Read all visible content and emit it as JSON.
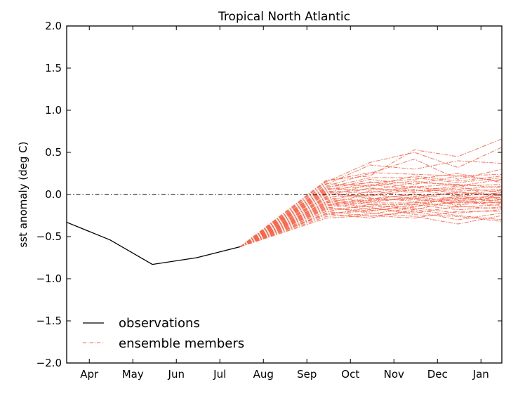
{
  "chart_data": {
    "type": "line",
    "title": "Tropical North Atlantic",
    "xlabel": "",
    "ylabel": "sst anomaly (deg C)",
    "ylim": [
      -2.0,
      2.0
    ],
    "yticks": [
      -2.0,
      -1.5,
      -1.0,
      -0.5,
      0.0,
      0.5,
      1.0,
      1.5,
      2.0
    ],
    "ytick_labels": [
      "−2.0",
      "−1.5",
      "−1.0",
      "−0.5",
      "0.0",
      "0.5",
      "1.0",
      "1.5",
      "2.0"
    ],
    "x_unit": "months (Apr = 0)",
    "xlim": [
      -0.52,
      9.48
    ],
    "xticks": [
      0,
      1,
      2,
      3,
      4,
      5,
      6,
      7,
      8,
      9
    ],
    "xtick_labels": [
      "Apr",
      "May",
      "Jun",
      "Jul",
      "Aug",
      "Sep",
      "Oct",
      "Nov",
      "Dec",
      "Jan"
    ],
    "zero_line": {
      "y": 0.0,
      "style": "dash-dot",
      "color": "#000000"
    },
    "legend": {
      "position": "lower-left",
      "entries": [
        {
          "label": "observations",
          "color": "#000000",
          "style": "solid"
        },
        {
          "label": "ensemble members",
          "color": "#ff6347",
          "style": "dash-dot"
        }
      ]
    },
    "observations": {
      "name": "observations",
      "color": "#000000",
      "x": [
        -0.52,
        0.48,
        1.45,
        2.47,
        3.47
      ],
      "y": [
        -0.33,
        -0.54,
        -0.83,
        -0.75,
        -0.62
      ]
    },
    "ensemble": {
      "name": "ensemble members",
      "color": "#ff6347",
      "x": [
        3.47,
        5.45,
        6.45,
        7.47,
        8.47,
        9.48
      ],
      "members": [
        [
          -0.62,
          0.17,
          0.22,
          0.53,
          0.45,
          0.66
        ],
        [
          -0.62,
          0.15,
          0.38,
          0.5,
          0.32,
          0.56
        ],
        [
          -0.62,
          0.12,
          0.35,
          0.3,
          0.4,
          0.37
        ],
        [
          -0.62,
          0.1,
          0.25,
          0.42,
          0.18,
          0.3
        ],
        [
          -0.62,
          0.16,
          0.26,
          0.24,
          0.22,
          0.24
        ],
        [
          -0.62,
          0.08,
          0.2,
          0.2,
          0.14,
          0.2
        ],
        [
          -0.62,
          0.05,
          0.18,
          0.12,
          0.22,
          0.16
        ],
        [
          -0.62,
          0.13,
          0.1,
          0.16,
          0.1,
          0.12
        ],
        [
          -0.62,
          0.02,
          0.15,
          0.08,
          0.06,
          0.1
        ],
        [
          -0.62,
          0.07,
          0.05,
          0.14,
          0.12,
          0.08
        ],
        [
          -0.62,
          -0.02,
          0.12,
          0.05,
          0.04,
          0.06
        ],
        [
          -0.62,
          0.04,
          0.02,
          0.1,
          0.0,
          0.05
        ],
        [
          -0.62,
          -0.05,
          0.08,
          0.02,
          0.08,
          0.03
        ],
        [
          -0.62,
          0.0,
          -0.02,
          0.06,
          -0.02,
          0.02
        ],
        [
          -0.62,
          -0.08,
          0.04,
          -0.02,
          0.02,
          0.0
        ],
        [
          -0.62,
          0.03,
          -0.05,
          0.0,
          -0.05,
          -0.01
        ],
        [
          -0.62,
          -0.1,
          0.0,
          -0.05,
          0.03,
          -0.02
        ],
        [
          -0.62,
          -0.04,
          -0.08,
          -0.03,
          -0.08,
          -0.03
        ],
        [
          -0.62,
          -0.12,
          -0.04,
          -0.08,
          -0.03,
          -0.04
        ],
        [
          -0.62,
          -0.06,
          -0.1,
          -0.1,
          -0.06,
          -0.05
        ],
        [
          -0.62,
          -0.14,
          -0.06,
          -0.06,
          -0.1,
          -0.06
        ],
        [
          -0.62,
          -0.08,
          -0.12,
          -0.12,
          -0.04,
          -0.08
        ],
        [
          -0.62,
          -0.16,
          -0.09,
          -0.04,
          -0.12,
          -0.09
        ],
        [
          -0.62,
          -0.18,
          -0.14,
          -0.14,
          -0.09,
          -0.1
        ],
        [
          -0.62,
          -0.11,
          -0.18,
          -0.09,
          -0.15,
          -0.12
        ],
        [
          -0.62,
          -0.2,
          -0.12,
          -0.18,
          -0.07,
          -0.14
        ],
        [
          -0.62,
          -0.22,
          -0.2,
          -0.12,
          -0.18,
          -0.15
        ],
        [
          -0.62,
          -0.24,
          -0.16,
          -0.22,
          -0.14,
          -0.17
        ],
        [
          -0.62,
          -0.26,
          -0.23,
          -0.16,
          -0.22,
          -0.18
        ],
        [
          -0.62,
          -0.28,
          -0.25,
          -0.28,
          -0.2,
          -0.2
        ],
        [
          -0.62,
          -0.2,
          -0.26,
          -0.2,
          -0.3,
          -0.22
        ],
        [
          -0.62,
          -0.15,
          -0.22,
          -0.26,
          -0.35,
          -0.25
        ],
        [
          -0.62,
          -0.23,
          -0.28,
          -0.18,
          -0.25,
          -0.3
        ],
        [
          -0.62,
          -0.09,
          -0.15,
          -0.24,
          -0.26,
          -0.32
        ],
        [
          -0.62,
          0.09,
          0.14,
          0.18,
          0.25,
          0.14
        ],
        [
          -0.62,
          0.06,
          0.1,
          0.22,
          0.16,
          0.22
        ],
        [
          -0.62,
          0.01,
          0.07,
          0.04,
          0.1,
          0.18
        ],
        [
          -0.62,
          -0.03,
          -0.01,
          0.09,
          0.12,
          -0.07
        ],
        [
          -0.62,
          -0.13,
          -0.07,
          0.01,
          -0.14,
          0.04
        ],
        [
          -0.62,
          -0.17,
          -0.19,
          -0.15,
          -0.01,
          -0.11
        ]
      ]
    }
  }
}
